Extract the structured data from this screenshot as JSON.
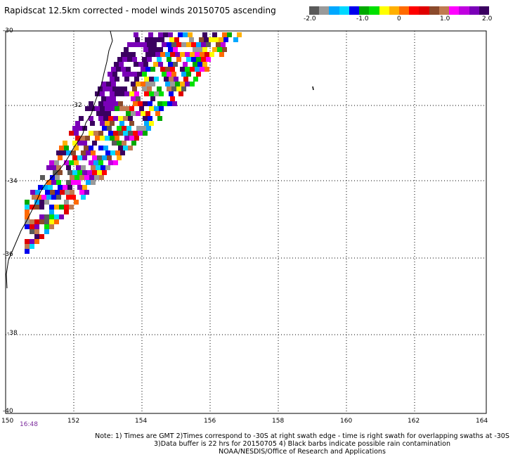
{
  "title": "Rapidscat 12.5km corrected - model winds 20150705 ascending",
  "colorbar": {
    "colors": [
      "#5a5a5a",
      "#9a9a9a",
      "#00a8ff",
      "#00d8ff",
      "#0000ee",
      "#00aa00",
      "#00e000",
      "#ffff00",
      "#ffb000",
      "#ff6a00",
      "#ff0000",
      "#e00000",
      "#8b4a2b",
      "#c07a50",
      "#ff00ff",
      "#c000e0",
      "#7a00b8",
      "#3a0060"
    ],
    "labels": [
      "-2.0",
      "-1.0",
      "0",
      "1.0",
      "2.0"
    ]
  },
  "map": {
    "lat_labels": [
      "-30",
      "-32",
      "-34",
      "-36",
      "-38",
      "-40"
    ],
    "lon_labels": [
      "150",
      "152",
      "154",
      "156",
      "158",
      "160",
      "162",
      "164"
    ],
    "time_label": "16:48"
  },
  "note": {
    "line1": "Note: 1) Times are GMT 2)Times correspond to -30S at right swath edge - time is right swath for overlapping swaths at -30S",
    "line2": "3)Data buffer is 22 hrs for 20150705 4) Black barbs indicate possible rain contamination",
    "line3": "NOAA/NESDIS/Office of Research and Applications"
  }
}
